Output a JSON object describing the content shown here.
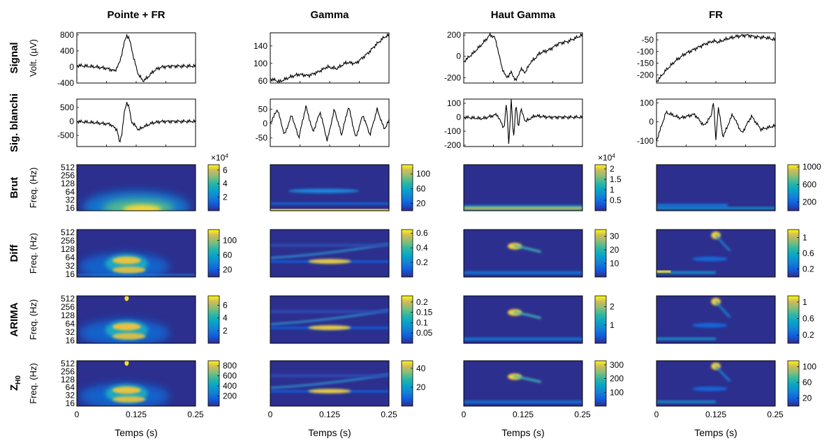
{
  "column_titles": [
    "Pointe + FR",
    "Gamma",
    "Haut Gamma",
    "FR"
  ],
  "row_labels": [
    "Signal",
    "Sig. blanchi",
    "Brut",
    "Diff",
    "ARIMA",
    "Z"
  ],
  "row_label_subscript": "H0",
  "ylabels": {
    "signal": "Volt. (µV)",
    "freq": "Freq. (Hz)"
  },
  "xlabel": "Temps (s)",
  "x_ticks": [
    "0",
    "0.125",
    "0.25"
  ],
  "freq_ticks": [
    "512",
    "256",
    "128",
    "64",
    "32",
    "16"
  ],
  "colorbar_exponent": "×10",
  "colorbar_exponent_power": "4",
  "chart_data": [
    {
      "type": "line",
      "row": "Signal",
      "column": "Pointe + FR",
      "yticks": [
        "800",
        "400",
        "0",
        "-400"
      ],
      "ylim": [
        -400,
        850
      ],
      "x": [
        0,
        0.02,
        0.04,
        0.06,
        0.07,
        0.08,
        0.09,
        0.1,
        0.105,
        0.11,
        0.115,
        0.12,
        0.13,
        0.14,
        0.15,
        0.16,
        0.17,
        0.18,
        0.2,
        0.22,
        0.25
      ],
      "y": [
        40,
        20,
        0,
        -30,
        -60,
        -100,
        100,
        600,
        800,
        700,
        500,
        200,
        -200,
        -350,
        -250,
        -120,
        -40,
        0,
        20,
        20,
        20
      ]
    },
    {
      "type": "line",
      "row": "Signal",
      "column": "Gamma",
      "yticks": [
        "140",
        "100",
        "60"
      ],
      "ylim": [
        55,
        170
      ],
      "x": [
        0,
        0.02,
        0.04,
        0.06,
        0.08,
        0.1,
        0.12,
        0.14,
        0.16,
        0.18,
        0.2,
        0.21,
        0.22,
        0.23,
        0.24,
        0.25
      ],
      "y": [
        65,
        58,
        68,
        75,
        72,
        80,
        92,
        88,
        102,
        100,
        118,
        128,
        140,
        150,
        160,
        165
      ]
    },
    {
      "type": "line",
      "row": "Signal",
      "column": "Haut Gamma",
      "yticks": [
        "200",
        "0",
        "-200"
      ],
      "ylim": [
        -250,
        220
      ],
      "x": [
        0,
        0.02,
        0.04,
        0.055,
        0.065,
        0.07,
        0.08,
        0.09,
        0.1,
        0.11,
        0.12,
        0.13,
        0.14,
        0.15,
        0.16,
        0.18,
        0.2,
        0.22,
        0.25
      ],
      "y": [
        -50,
        30,
        120,
        200,
        180,
        100,
        -100,
        -200,
        -150,
        -230,
        -120,
        -150,
        -60,
        -20,
        30,
        60,
        120,
        140,
        200
      ]
    },
    {
      "type": "line",
      "row": "Signal",
      "column": "FR",
      "yticks": [
        "-50",
        "-100",
        "-150",
        "-200"
      ],
      "ylim": [
        -235,
        -20
      ],
      "x": [
        0,
        0.02,
        0.04,
        0.06,
        0.08,
        0.1,
        0.12,
        0.13,
        0.15,
        0.17,
        0.19,
        0.21,
        0.23,
        0.25
      ],
      "y": [
        -230,
        -180,
        -140,
        -110,
        -90,
        -70,
        -55,
        -60,
        -45,
        -35,
        -30,
        -38,
        -40,
        -50
      ]
    },
    {
      "type": "line",
      "row": "Sig. blanchi",
      "column": "Pointe + FR",
      "yticks": [
        "500",
        "0",
        "-500"
      ],
      "ylim": [
        -900,
        800
      ],
      "x": [
        0,
        0.04,
        0.07,
        0.085,
        0.09,
        0.095,
        0.1,
        0.105,
        0.11,
        0.115,
        0.12,
        0.13,
        0.14,
        0.16,
        0.18,
        0.25
      ],
      "y": [
        0,
        -50,
        -100,
        -300,
        -800,
        -400,
        300,
        700,
        500,
        0,
        -100,
        -300,
        -200,
        -50,
        0,
        0
      ]
    },
    {
      "type": "line",
      "row": "Sig. blanchi",
      "column": "Gamma",
      "yticks": [
        "50",
        "0",
        "-50"
      ],
      "ylim": [
        -80,
        85
      ],
      "x": [
        0,
        0.015,
        0.03,
        0.045,
        0.06,
        0.075,
        0.09,
        0.105,
        0.12,
        0.135,
        0.15,
        0.165,
        0.18,
        0.195,
        0.21,
        0.225,
        0.24,
        0.25
      ],
      "y": [
        0,
        50,
        -40,
        30,
        -50,
        60,
        -30,
        40,
        -60,
        50,
        -40,
        60,
        -50,
        30,
        -40,
        50,
        -20,
        10
      ]
    },
    {
      "type": "line",
      "row": "Sig. blanchi",
      "column": "Haut Gamma",
      "yticks": [
        "100",
        "0",
        "-100",
        "-200"
      ],
      "ylim": [
        -210,
        130
      ],
      "x": [
        0,
        0.04,
        0.07,
        0.085,
        0.09,
        0.095,
        0.1,
        0.105,
        0.11,
        0.115,
        0.12,
        0.13,
        0.15,
        0.18,
        0.25
      ],
      "y": [
        0,
        -10,
        20,
        -80,
        110,
        -200,
        120,
        -150,
        100,
        -80,
        60,
        -30,
        10,
        0,
        0
      ]
    },
    {
      "type": "line",
      "row": "Sig. blanchi",
      "column": "FR",
      "yticks": [
        "100",
        "0",
        "-100"
      ],
      "ylim": [
        -130,
        120
      ],
      "x": [
        0,
        0.02,
        0.05,
        0.08,
        0.1,
        0.115,
        0.12,
        0.125,
        0.13,
        0.14,
        0.16,
        0.18,
        0.2,
        0.22,
        0.25
      ],
      "y": [
        -100,
        50,
        20,
        40,
        -20,
        30,
        110,
        -100,
        80,
        -80,
        40,
        -60,
        30,
        -40,
        -20
      ]
    },
    {
      "type": "heatmap",
      "row": "Brut",
      "column": "Pointe + FR",
      "colorbar_ticks": [
        "6",
        "4",
        "2"
      ],
      "colorbar_range": [
        0,
        6.8
      ],
      "exponent": true
    },
    {
      "type": "heatmap",
      "row": "Brut",
      "column": "Gamma",
      "colorbar_ticks": [
        "100",
        "60",
        "20"
      ],
      "colorbar_range": [
        0,
        125
      ]
    },
    {
      "type": "heatmap",
      "row": "Brut",
      "column": "Haut Gamma",
      "colorbar_ticks": [
        "2",
        "1.5",
        "1",
        "0.5"
      ],
      "colorbar_range": [
        0,
        2.2
      ],
      "exponent": true
    },
    {
      "type": "heatmap",
      "row": "Brut",
      "column": "FR",
      "colorbar_ticks": [
        "1000",
        "600",
        "200"
      ],
      "colorbar_range": [
        0,
        1050
      ]
    },
    {
      "type": "heatmap",
      "row": "Diff",
      "column": "Pointe + FR",
      "colorbar_ticks": [
        "100",
        "60",
        "20"
      ],
      "colorbar_range": [
        0,
        130
      ]
    },
    {
      "type": "heatmap",
      "row": "Diff",
      "column": "Gamma",
      "colorbar_ticks": [
        "0.6",
        "0.4",
        "0.2"
      ],
      "colorbar_range": [
        0,
        0.65
      ]
    },
    {
      "type": "heatmap",
      "row": "Diff",
      "column": "Haut Gamma",
      "colorbar_ticks": [
        "30",
        "20",
        "10"
      ],
      "colorbar_range": [
        0,
        35
      ]
    },
    {
      "type": "heatmap",
      "row": "Diff",
      "column": "FR",
      "colorbar_ticks": [
        "1",
        "0.6",
        "0.2"
      ],
      "colorbar_range": [
        0,
        1.2
      ]
    },
    {
      "type": "heatmap",
      "row": "ARIMA",
      "column": "Pointe + FR",
      "colorbar_ticks": [
        "6",
        "4",
        "2"
      ],
      "colorbar_range": [
        0,
        7.5
      ]
    },
    {
      "type": "heatmap",
      "row": "ARIMA",
      "column": "Gamma",
      "colorbar_ticks": [
        "0.2",
        "0.15",
        "0.1",
        "0.05"
      ],
      "colorbar_range": [
        0,
        0.23
      ]
    },
    {
      "type": "heatmap",
      "row": "ARIMA",
      "column": "Haut Gamma",
      "colorbar_ticks": [
        "2",
        "1"
      ],
      "colorbar_range": [
        0,
        2.6
      ]
    },
    {
      "type": "heatmap",
      "row": "ARIMA",
      "column": "FR",
      "colorbar_ticks": [
        "1",
        "0.6",
        "0.2"
      ],
      "colorbar_range": [
        0,
        1.15
      ]
    },
    {
      "type": "heatmap",
      "row": "Z",
      "column": "Pointe + FR",
      "colorbar_ticks": [
        "800",
        "600",
        "400",
        "200"
      ],
      "colorbar_range": [
        0,
        900
      ]
    },
    {
      "type": "heatmap",
      "row": "Z",
      "column": "Gamma",
      "colorbar_ticks": [
        "40",
        "20"
      ],
      "colorbar_range": [
        0,
        48
      ]
    },
    {
      "type": "heatmap",
      "row": "Z",
      "column": "Haut Gamma",
      "colorbar_ticks": [
        "300",
        "200",
        "100"
      ],
      "colorbar_range": [
        0,
        330
      ]
    },
    {
      "type": "heatmap",
      "row": "Z",
      "column": "FR",
      "colorbar_ticks": [
        "100",
        "60",
        "20"
      ],
      "colorbar_range": [
        0,
        115
      ]
    }
  ]
}
